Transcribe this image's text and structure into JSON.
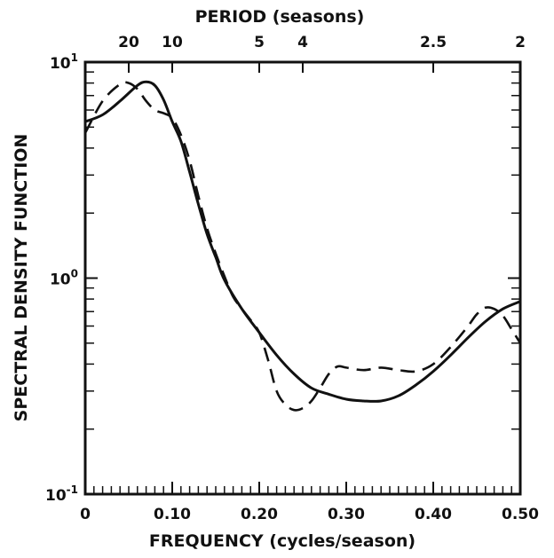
{
  "chart_data": {
    "type": "line",
    "title": "",
    "xlabel": "FREQUENCY (cycles/season)",
    "ylabel": "SPECTRAL DENSITY FUNCTION",
    "top_axis_label": "PERIOD (seasons)",
    "x_scale": "linear",
    "y_scale": "log",
    "xlim": [
      0,
      0.5
    ],
    "ylim": [
      0.1,
      10
    ],
    "x_ticks": [
      {
        "value": 0,
        "label": "0"
      },
      {
        "value": 0.1,
        "label": "0.10"
      },
      {
        "value": 0.2,
        "label": "0.20"
      },
      {
        "value": 0.3,
        "label": "0.30"
      },
      {
        "value": 0.4,
        "label": "0.40"
      },
      {
        "value": 0.5,
        "label": "0.50"
      }
    ],
    "y_ticks": [
      {
        "value": 0.1,
        "base": "10",
        "exp": "-1"
      },
      {
        "value": 1,
        "base": "10",
        "exp": "0"
      },
      {
        "value": 10,
        "base": "10",
        "exp": "1"
      }
    ],
    "top_ticks": [
      {
        "value": 0.05,
        "label": "20"
      },
      {
        "value": 0.1,
        "label": "10"
      },
      {
        "value": 0.2,
        "label": "5"
      },
      {
        "value": 0.25,
        "label": "4"
      },
      {
        "value": 0.4,
        "label": "2.5"
      },
      {
        "value": 0.5,
        "label": "2"
      }
    ],
    "grid": false,
    "legend": "none",
    "series": [
      {
        "style": "solid",
        "color": "#111111",
        "x": [
          0,
          0.02,
          0.04,
          0.06,
          0.07,
          0.08,
          0.09,
          0.1,
          0.11,
          0.12,
          0.13,
          0.14,
          0.15,
          0.16,
          0.18,
          0.2,
          0.22,
          0.24,
          0.26,
          0.28,
          0.3,
          0.32,
          0.34,
          0.36,
          0.38,
          0.4,
          0.42,
          0.44,
          0.46,
          0.48,
          0.5
        ],
        "y": [
          5.3,
          5.7,
          6.6,
          7.8,
          8.1,
          7.8,
          6.7,
          5.3,
          4.3,
          3.1,
          2.2,
          1.6,
          1.25,
          0.98,
          0.72,
          0.56,
          0.44,
          0.36,
          0.31,
          0.29,
          0.275,
          0.27,
          0.27,
          0.285,
          0.32,
          0.37,
          0.44,
          0.53,
          0.63,
          0.72,
          0.78
        ]
      },
      {
        "style": "dashed",
        "color": "#111111",
        "x": [
          0,
          0.02,
          0.04,
          0.05,
          0.06,
          0.07,
          0.08,
          0.09,
          0.1,
          0.11,
          0.12,
          0.13,
          0.14,
          0.15,
          0.16,
          0.17,
          0.18,
          0.19,
          0.2,
          0.21,
          0.22,
          0.23,
          0.24,
          0.25,
          0.26,
          0.27,
          0.28,
          0.29,
          0.3,
          0.32,
          0.34,
          0.36,
          0.38,
          0.4,
          0.42,
          0.44,
          0.45,
          0.46,
          0.47,
          0.48,
          0.49,
          0.5
        ],
        "y": [
          4.7,
          6.6,
          7.9,
          8.0,
          7.5,
          6.6,
          6.0,
          5.8,
          5.5,
          4.6,
          3.5,
          2.4,
          1.7,
          1.3,
          1.02,
          0.82,
          0.72,
          0.64,
          0.56,
          0.42,
          0.3,
          0.26,
          0.245,
          0.25,
          0.27,
          0.31,
          0.36,
          0.39,
          0.385,
          0.375,
          0.385,
          0.375,
          0.37,
          0.4,
          0.48,
          0.6,
          0.68,
          0.73,
          0.72,
          0.67,
          0.58,
          0.5
        ]
      }
    ]
  }
}
